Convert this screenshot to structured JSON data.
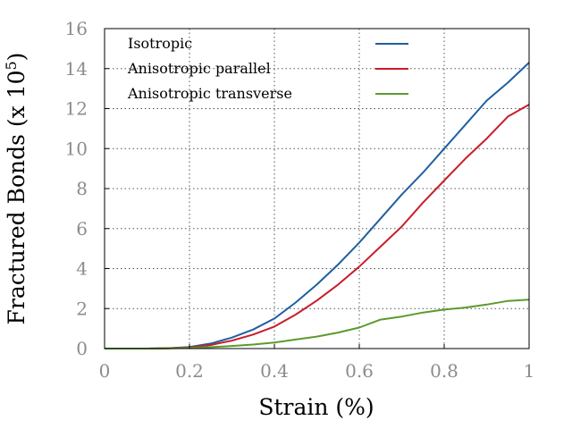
{
  "chart_data": {
    "type": "line",
    "xlabel": "Strain (%)",
    "ylabel": "Fractured Bonds (x 10",
    "ylabel_exponent": "5",
    "ylabel_suffix": ")",
    "xlim": [
      0,
      1
    ],
    "ylim": [
      0,
      16
    ],
    "xticks": [
      {
        "value": 0,
        "label": "0"
      },
      {
        "value": 0.2,
        "label": "0.2"
      },
      {
        "value": 0.4,
        "label": "0.4"
      },
      {
        "value": 0.6,
        "label": "0.6"
      },
      {
        "value": 0.8,
        "label": "0.8"
      },
      {
        "value": 1,
        "label": "1"
      }
    ],
    "yticks": [
      {
        "value": 0,
        "label": "0"
      },
      {
        "value": 2,
        "label": "2"
      },
      {
        "value": 4,
        "label": "4"
      },
      {
        "value": 6,
        "label": "6"
      },
      {
        "value": 8,
        "label": "8"
      },
      {
        "value": 10,
        "label": "10"
      },
      {
        "value": 12,
        "label": "12"
      },
      {
        "value": 14,
        "label": "14"
      },
      {
        "value": 16,
        "label": "16"
      }
    ],
    "grid": true,
    "legend_position": "top-left",
    "series": [
      {
        "name": "Isotropic",
        "color": "#1f5fa0",
        "x": [
          0,
          0.1,
          0.15,
          0.2,
          0.25,
          0.3,
          0.35,
          0.4,
          0.45,
          0.5,
          0.55,
          0.6,
          0.65,
          0.7,
          0.75,
          0.8,
          0.85,
          0.9,
          0.95,
          1.0
        ],
        "y": [
          0,
          0,
          0.02,
          0.08,
          0.25,
          0.55,
          0.95,
          1.5,
          2.3,
          3.2,
          4.2,
          5.3,
          6.5,
          7.7,
          8.8,
          10.0,
          11.2,
          12.4,
          13.3,
          14.3
        ]
      },
      {
        "name": "Anisotropic parallel",
        "color": "#c81e2a",
        "x": [
          0,
          0.1,
          0.15,
          0.2,
          0.25,
          0.3,
          0.35,
          0.4,
          0.45,
          0.5,
          0.55,
          0.6,
          0.65,
          0.7,
          0.75,
          0.8,
          0.85,
          0.9,
          0.95,
          1.0
        ],
        "y": [
          0,
          0,
          0.02,
          0.06,
          0.18,
          0.4,
          0.7,
          1.1,
          1.7,
          2.4,
          3.2,
          4.1,
          5.1,
          6.1,
          7.3,
          8.4,
          9.5,
          10.5,
          11.6,
          12.2
        ]
      },
      {
        "name": "Anisotropic transverse",
        "color": "#5c9a2c",
        "x": [
          0,
          0.1,
          0.15,
          0.2,
          0.25,
          0.3,
          0.35,
          0.4,
          0.45,
          0.5,
          0.55,
          0.6,
          0.65,
          0.7,
          0.75,
          0.8,
          0.85,
          0.9,
          0.95,
          1.0
        ],
        "y": [
          0,
          0,
          0.01,
          0.03,
          0.07,
          0.13,
          0.2,
          0.3,
          0.45,
          0.6,
          0.8,
          1.05,
          1.45,
          1.6,
          1.8,
          1.95,
          2.05,
          2.2,
          2.38,
          2.45
        ]
      }
    ]
  }
}
